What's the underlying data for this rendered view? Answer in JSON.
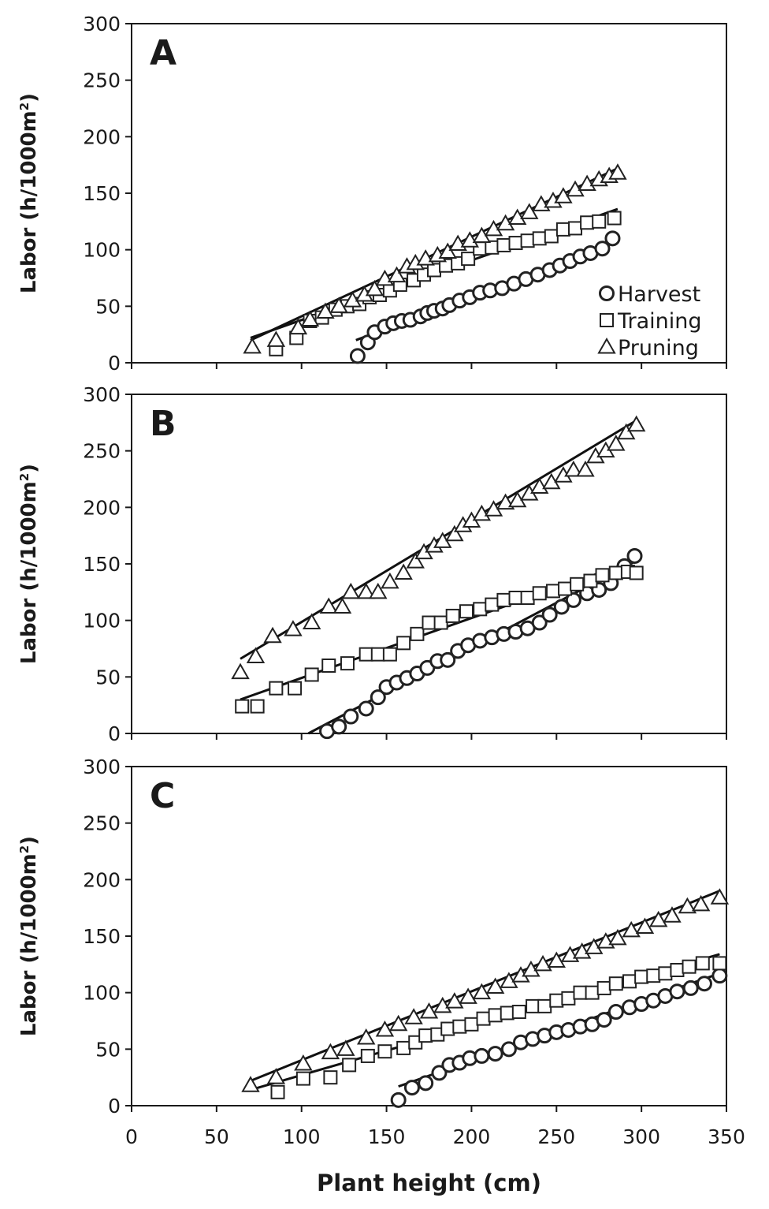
{
  "chart_data": [
    {
      "type": "scatter",
      "panel_label": "A",
      "xlabel": "",
      "ylabel": "Labor (h/1000m²)",
      "ylabel_parts": {
        "main": "Labor (h/1000m",
        "sup": "2",
        "end": ")"
      },
      "xlim": [
        0,
        350
      ],
      "ylim": [
        0,
        300
      ],
      "xticks": [],
      "yticks": [
        0,
        50,
        100,
        150,
        200,
        250,
        300
      ],
      "legend": {
        "position": "bottom-right",
        "entries": [
          "Harvest",
          "Training",
          "Pruning"
        ]
      },
      "series": [
        {
          "name": "Harvest",
          "marker": "circle",
          "x": [
            133,
            139,
            143,
            149,
            154,
            159,
            164,
            170,
            174,
            178,
            183,
            187,
            193,
            199,
            205,
            211,
            218,
            225,
            232,
            239,
            246,
            252,
            258,
            264,
            270,
            277,
            283
          ],
          "y": [
            6,
            18,
            27,
            32,
            35,
            37,
            38,
            41,
            44,
            46,
            48,
            51,
            55,
            58,
            62,
            64,
            66,
            70,
            74,
            78,
            82,
            86,
            90,
            94,
            97,
            101,
            110
          ],
          "fit": [
            [
              132,
              20
            ],
            [
              284,
              107
            ]
          ]
        },
        {
          "name": "Training",
          "marker": "square",
          "x": [
            85,
            97,
            105,
            112,
            120,
            127,
            134,
            140,
            146,
            152,
            158,
            166,
            172,
            178,
            185,
            192,
            198,
            205,
            212,
            219,
            226,
            233,
            240,
            247,
            254,
            261,
            268,
            275,
            284
          ],
          "y": [
            12,
            22,
            37,
            40,
            47,
            50,
            52,
            58,
            60,
            64,
            69,
            73,
            78,
            82,
            86,
            88,
            92,
            101,
            102,
            104,
            106,
            108,
            110,
            112,
            118,
            119,
            124,
            125,
            128
          ],
          "fit": [
            [
              70,
              22
            ],
            [
              286,
              136
            ]
          ]
        },
        {
          "name": "Pruning",
          "marker": "triangle",
          "x": [
            71,
            85,
            98,
            105,
            114,
            122,
            130,
            137,
            143,
            149,
            156,
            162,
            167,
            173,
            180,
            186,
            192,
            199,
            206,
            213,
            220,
            227,
            234,
            241,
            248,
            254,
            261,
            268,
            275,
            281,
            286
          ],
          "y": [
            14,
            20,
            31,
            38,
            45,
            50,
            55,
            60,
            65,
            74,
            77,
            85,
            88,
            92,
            95,
            98,
            105,
            108,
            112,
            118,
            123,
            128,
            133,
            140,
            143,
            147,
            153,
            158,
            162,
            165,
            168
          ],
          "fit": [
            [
              70,
              20
            ],
            [
              286,
              172
            ]
          ]
        }
      ]
    },
    {
      "type": "scatter",
      "panel_label": "B",
      "xlabel": "",
      "ylabel": "Labor (h/1000m²)",
      "ylabel_parts": {
        "main": "Labor (h/1000m",
        "sup": "2",
        "end": ")"
      },
      "xlim": [
        0,
        350
      ],
      "ylim": [
        0,
        300
      ],
      "xticks": [],
      "yticks": [
        0,
        50,
        100,
        150,
        200,
        250,
        300
      ],
      "legend": null,
      "series": [
        {
          "name": "Harvest",
          "marker": "circle",
          "x": [
            115,
            122,
            129,
            138,
            145,
            150,
            156,
            162,
            168,
            174,
            180,
            186,
            192,
            198,
            205,
            212,
            219,
            226,
            233,
            240,
            246,
            253,
            260,
            268,
            275,
            282,
            290,
            296
          ],
          "y": [
            2,
            6,
            15,
            22,
            32,
            41,
            45,
            49,
            53,
            58,
            64,
            65,
            73,
            78,
            82,
            85,
            88,
            90,
            93,
            98,
            105,
            112,
            118,
            124,
            127,
            133,
            148,
            157
          ],
          "fit": [
            [
              104,
              0
            ],
            [
              296,
              152
            ]
          ]
        },
        {
          "name": "Training",
          "marker": "square",
          "x": [
            65,
            74,
            85,
            96,
            106,
            116,
            127,
            138,
            145,
            152,
            160,
            168,
            175,
            182,
            189,
            197,
            205,
            212,
            219,
            226,
            233,
            240,
            248,
            255,
            262,
            270,
            277,
            285,
            292,
            297
          ],
          "y": [
            24,
            24,
            40,
            40,
            52,
            60,
            62,
            70,
            70,
            70,
            80,
            88,
            98,
            98,
            104,
            108,
            110,
            114,
            118,
            120,
            120,
            124,
            126,
            128,
            132,
            135,
            140,
            142,
            143,
            142
          ],
          "fit": [
            [
              64,
              30
            ],
            [
              296,
              153
            ]
          ]
        },
        {
          "name": "Pruning",
          "marker": "triangle",
          "x": [
            64,
            73,
            83,
            95,
            106,
            116,
            124,
            129,
            138,
            145,
            152,
            160,
            167,
            172,
            178,
            183,
            190,
            195,
            200,
            206,
            213,
            220,
            227,
            234,
            240,
            247,
            254,
            260,
            267,
            273,
            279,
            285,
            291,
            297
          ],
          "y": [
            54,
            68,
            86,
            92,
            98,
            112,
            112,
            125,
            125,
            125,
            134,
            142,
            152,
            160,
            166,
            170,
            176,
            184,
            188,
            194,
            198,
            204,
            206,
            212,
            218,
            222,
            228,
            233,
            233,
            245,
            250,
            256,
            266,
            273
          ],
          "fit": [
            [
              64,
              66
            ],
            [
              296,
              276
            ]
          ]
        }
      ]
    },
    {
      "type": "scatter",
      "panel_label": "C",
      "xlabel": "Plant height (cm)",
      "ylabel": "Labor (h/1000m²)",
      "ylabel_parts": {
        "main": "Labor (h/1000m",
        "sup": "2",
        "end": ")"
      },
      "xlim": [
        0,
        350
      ],
      "ylim": [
        0,
        300
      ],
      "xticks": [
        0,
        50,
        100,
        150,
        200,
        250,
        300,
        350
      ],
      "yticks": [
        0,
        50,
        100,
        150,
        200,
        250,
        300
      ],
      "legend": null,
      "series": [
        {
          "name": "Harvest",
          "marker": "circle",
          "x": [
            157,
            165,
            173,
            181,
            187,
            193,
            199,
            206,
            214,
            222,
            229,
            236,
            243,
            250,
            257,
            264,
            271,
            278,
            285,
            293,
            300,
            307,
            314,
            321,
            329,
            337,
            346
          ],
          "y": [
            5,
            16,
            20,
            29,
            36,
            38,
            42,
            44,
            46,
            50,
            56,
            59,
            62,
            65,
            67,
            70,
            72,
            76,
            83,
            87,
            90,
            93,
            97,
            101,
            104,
            108,
            115
          ],
          "fit": [
            [
              157,
              17
            ],
            [
              346,
              117
            ]
          ]
        },
        {
          "name": "Training",
          "marker": "square",
          "x": [
            86,
            101,
            117,
            128,
            139,
            149,
            160,
            167,
            173,
            180,
            186,
            193,
            200,
            207,
            214,
            221,
            228,
            236,
            243,
            250,
            257,
            264,
            271,
            278,
            285,
            293,
            300,
            307,
            314,
            321,
            328,
            336,
            346
          ],
          "y": [
            12,
            24,
            25,
            36,
            44,
            48,
            51,
            56,
            62,
            63,
            68,
            70,
            72,
            77,
            80,
            82,
            83,
            88,
            88,
            93,
            95,
            100,
            100,
            104,
            108,
            110,
            114,
            115,
            117,
            120,
            123,
            126,
            126
          ],
          "fit": [
            [
              70,
              14
            ],
            [
              346,
              134
            ]
          ]
        },
        {
          "name": "Pruning",
          "marker": "triangle",
          "x": [
            70,
            85,
            101,
            117,
            126,
            138,
            149,
            157,
            166,
            175,
            183,
            190,
            198,
            206,
            214,
            222,
            229,
            235,
            242,
            250,
            258,
            265,
            272,
            279,
            286,
            294,
            302,
            310,
            318,
            327,
            335,
            346
          ],
          "y": [
            18,
            25,
            37,
            47,
            50,
            60,
            67,
            72,
            78,
            83,
            88,
            92,
            96,
            100,
            105,
            110,
            115,
            120,
            125,
            128,
            133,
            136,
            140,
            145,
            148,
            155,
            158,
            164,
            168,
            176,
            178,
            184
          ],
          "fit": [
            [
              70,
              22
            ],
            [
              346,
              190
            ]
          ]
        }
      ]
    }
  ]
}
